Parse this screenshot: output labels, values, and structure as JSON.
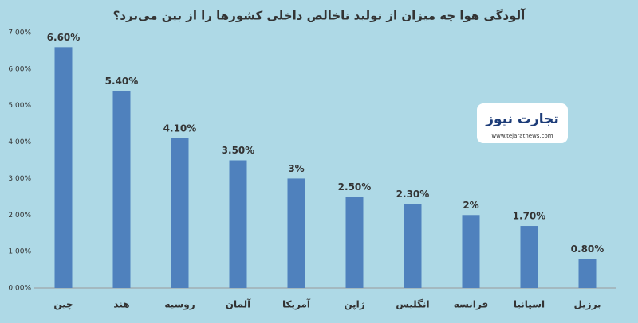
{
  "chart_data": {
    "type": "bar",
    "title": "آلودگی هوا چه میزان از تولید ناخالص داخلی کشورها را از بین می‌برد؟",
    "categories": [
      "چین",
      "هند",
      "روسیه",
      "آلمان",
      "آمریکا",
      "ژاپن",
      "انگلیس",
      "فرانسه",
      "اسپانیا",
      "برزیل"
    ],
    "values": [
      6.6,
      5.4,
      4.1,
      3.5,
      3,
      2.5,
      2.3,
      2,
      1.7,
      0.8
    ],
    "value_labels": [
      "6.60%",
      "5.40%",
      "4.10%",
      "3.50%",
      "3%",
      "2.50%",
      "2.30%",
      "2%",
      "1.70%",
      "0.80%"
    ],
    "color": "#4f81bd",
    "ylim": [
      0,
      7
    ],
    "yticks": [
      {
        "value": 0,
        "label": "0.00%"
      },
      {
        "value": 1,
        "label": "1.00%"
      },
      {
        "value": 2,
        "label": "2.00%"
      },
      {
        "value": 3,
        "label": "3.00%"
      },
      {
        "value": 4,
        "label": "4.00%"
      },
      {
        "value": 5,
        "label": "5.00%"
      },
      {
        "value": 6,
        "label": "6.00%"
      },
      {
        "value": 7,
        "label": "7.00%"
      }
    ],
    "grid": false
  },
  "logo": {
    "brand": "تجارت نیوز",
    "url": "www.tejaratnews.com"
  }
}
